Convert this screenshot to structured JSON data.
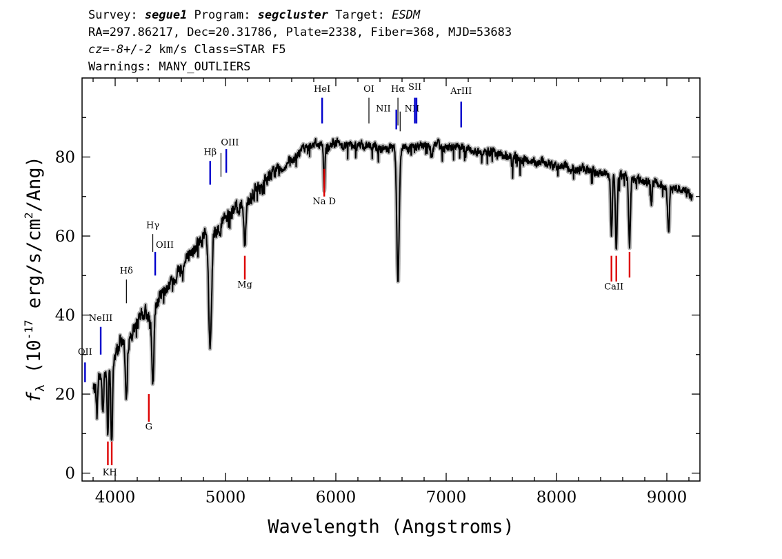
{
  "header": {
    "line1": {
      "survey_label": "Survey: ",
      "survey": "segue1",
      "program_label": " Program: ",
      "program": "segcluster",
      "target_label": " Target: ",
      "target": "ESDM"
    },
    "line2": "RA=297.86217, Dec=20.31786, Plate=2338, Fiber=368, MJD=53683",
    "line3": {
      "cz": "cz=-8+/-2",
      "rest": " km/s Class=STAR F5"
    },
    "line4": "Warnings: MANY_OUTLIERS"
  },
  "chart_data": {
    "type": "line",
    "xlabel": "Wavelength (Angstroms)",
    "ylabel": "f_λ (10^-17 erg/s/cm^2/Ang)",
    "ylabel_parts": {
      "f": "f",
      "sub": "λ",
      "pre": " (10",
      "exp1": "-17",
      "mid": " erg/s/cm",
      "exp2": "2",
      "post": "/Ang)"
    },
    "xlim": [
      3700,
      9300
    ],
    "ylim": [
      -2,
      100
    ],
    "x_ticks": [
      4000,
      5000,
      6000,
      7000,
      8000,
      9000
    ],
    "y_ticks": [
      0,
      20,
      40,
      60,
      80
    ],
    "colors": {
      "flux": "#000000",
      "error_band": "#b8b8b8",
      "emission": "#0000cc",
      "absorption": "#dd0000"
    },
    "continuum_knots": [
      [
        3800,
        21
      ],
      [
        3850,
        24
      ],
      [
        3900,
        26
      ],
      [
        3950,
        27
      ],
      [
        4000,
        30
      ],
      [
        4050,
        33
      ],
      [
        4100,
        34
      ],
      [
        4150,
        35
      ],
      [
        4200,
        38
      ],
      [
        4250,
        40
      ],
      [
        4300,
        40.5
      ],
      [
        4350,
        41
      ],
      [
        4400,
        45
      ],
      [
        4450,
        46.5
      ],
      [
        4500,
        48
      ],
      [
        4600,
        52
      ],
      [
        4700,
        56
      ],
      [
        4800,
        59.5
      ],
      [
        4850,
        60
      ],
      [
        4900,
        61
      ],
      [
        5000,
        64
      ],
      [
        5100,
        67
      ],
      [
        5200,
        69
      ],
      [
        5300,
        72
      ],
      [
        5400,
        75
      ],
      [
        5500,
        77
      ],
      [
        5600,
        79
      ],
      [
        5700,
        82
      ],
      [
        5800,
        83.5
      ],
      [
        5900,
        83
      ],
      [
        6000,
        83.5
      ],
      [
        6100,
        83
      ],
      [
        6200,
        83
      ],
      [
        6300,
        83
      ],
      [
        6400,
        82
      ],
      [
        6500,
        82
      ],
      [
        6600,
        82.5
      ],
      [
        6700,
        82.5
      ],
      [
        6800,
        83
      ],
      [
        6900,
        83
      ],
      [
        7000,
        82.5
      ],
      [
        7200,
        82
      ],
      [
        7400,
        81
      ],
      [
        7600,
        80
      ],
      [
        7800,
        79
      ],
      [
        8000,
        78
      ],
      [
        8200,
        77
      ],
      [
        8400,
        76
      ],
      [
        8600,
        75
      ],
      [
        8800,
        74
      ],
      [
        9000,
        72.5
      ],
      [
        9100,
        72
      ],
      [
        9200,
        71
      ],
      [
        9230,
        70
      ]
    ],
    "absorption_features": [
      {
        "x": 3835,
        "depth": 9,
        "width": 6
      },
      {
        "x": 3889,
        "depth": 11,
        "width": 7
      },
      {
        "x": 3934,
        "depth": 17,
        "width": 6
      },
      {
        "x": 3969,
        "depth": 20,
        "width": 8
      },
      {
        "x": 4102,
        "depth": 16,
        "width": 9
      },
      {
        "x": 4341,
        "depth": 19,
        "width": 10
      },
      {
        "x": 4861,
        "depth": 29,
        "width": 13
      },
      {
        "x": 5175,
        "depth": 10,
        "width": 9
      },
      {
        "x": 5895,
        "depth": 12,
        "width": 6
      },
      {
        "x": 6563,
        "depth": 33,
        "width": 11
      },
      {
        "x": 6870,
        "depth": 3,
        "width": 8
      },
      {
        "x": 7600,
        "depth": 3,
        "width": 7
      },
      {
        "x": 8498,
        "depth": 15,
        "width": 7
      },
      {
        "x": 8542,
        "depth": 18,
        "width": 8
      },
      {
        "x": 8662,
        "depth": 17,
        "width": 8
      },
      {
        "x": 8860,
        "depth": 5,
        "width": 7
      },
      {
        "x": 9015,
        "depth": 12,
        "width": 8
      }
    ],
    "emission_lines": [
      {
        "label": "OII",
        "x": 3727,
        "y1": 23,
        "y2": 28,
        "lx": 3727,
        "ly": 30
      },
      {
        "label": "NeIII",
        "x": 3869,
        "y1": 30,
        "y2": 37,
        "lx": 3869,
        "ly": 38.5
      },
      {
        "label": "Hδ",
        "x": 4102,
        "y1": 43,
        "y2": 49,
        "lx": 4102,
        "ly": 50.5,
        "thin": true
      },
      {
        "label": "Hγ",
        "x": 4341,
        "y1": 56,
        "y2": 60.5,
        "lx": 4341,
        "ly": 62,
        "thin": true
      },
      {
        "label": "OIII",
        "x": 4363,
        "y1": 50,
        "y2": 56,
        "lx": 4450,
        "ly": 57
      },
      {
        "label": "Hβ",
        "x": 4861,
        "y1": 73,
        "y2": 79,
        "lx": 4861,
        "ly": 80.5
      },
      {
        "label": "",
        "x": 4959,
        "y1": 75,
        "y2": 81,
        "thin": true
      },
      {
        "label": "OIII",
        "x": 5007,
        "y1": 76,
        "y2": 82,
        "lx": 5040,
        "ly": 83
      },
      {
        "label": "HeI",
        "x": 5876,
        "y1": 88.5,
        "y2": 95,
        "lx": 5876,
        "ly": 96.5
      },
      {
        "label": "OI",
        "x": 6300,
        "y1": 88.5,
        "y2": 95,
        "lx": 6300,
        "ly": 96.5,
        "thin": true
      },
      {
        "label": "NII",
        "x": 6548,
        "y1": 87,
        "y2": 92,
        "lx": 6430,
        "ly": 91.5
      },
      {
        "label": "Hα",
        "x": 6563,
        "y1": 88,
        "y2": 95,
        "lx": 6563,
        "ly": 96.5,
        "thin": true
      },
      {
        "label": "NII",
        "x": 6583,
        "y1": 86.5,
        "y2": 91.5,
        "lx": 6690,
        "ly": 91.5,
        "thin": true
      },
      {
        "label": "SII",
        "x": 6716,
        "y1": 88.5,
        "y2": 95,
        "lx": 6716,
        "ly": 97
      },
      {
        "label": "",
        "x": 6731,
        "y1": 88.5,
        "y2": 95
      },
      {
        "label": "ArIII",
        "x": 7136,
        "y1": 87.5,
        "y2": 94,
        "lx": 7136,
        "ly": 96
      }
    ],
    "absorption_lines": [
      {
        "label": "K",
        "x": 3934,
        "y1": 2,
        "y2": 8
      },
      {
        "label": "H",
        "x": 3969,
        "y1": 2,
        "y2": 8
      },
      {
        "label": "G",
        "x": 4305,
        "y1": 13,
        "y2": 20,
        "lx": 4305,
        "ly": 11
      },
      {
        "label": "Mg",
        "x": 5175,
        "y1": 49,
        "y2": 55,
        "lx": 5175,
        "ly": 47
      },
      {
        "label": "Na D",
        "x": 5895,
        "y1": 70,
        "y2": 77,
        "lx": 5895,
        "ly": 68
      },
      {
        "label": "",
        "x": 8498,
        "y1": 48.5,
        "y2": 55
      },
      {
        "label": "CaII",
        "x": 8542,
        "y1": 48.5,
        "y2": 55,
        "lx": 8520,
        "ly": 46.5
      },
      {
        "label": "",
        "x": 8662,
        "y1": 49.5,
        "y2": 56
      }
    ],
    "kh_label": {
      "text": "KH",
      "x": 3951,
      "y": -0.5
    }
  }
}
